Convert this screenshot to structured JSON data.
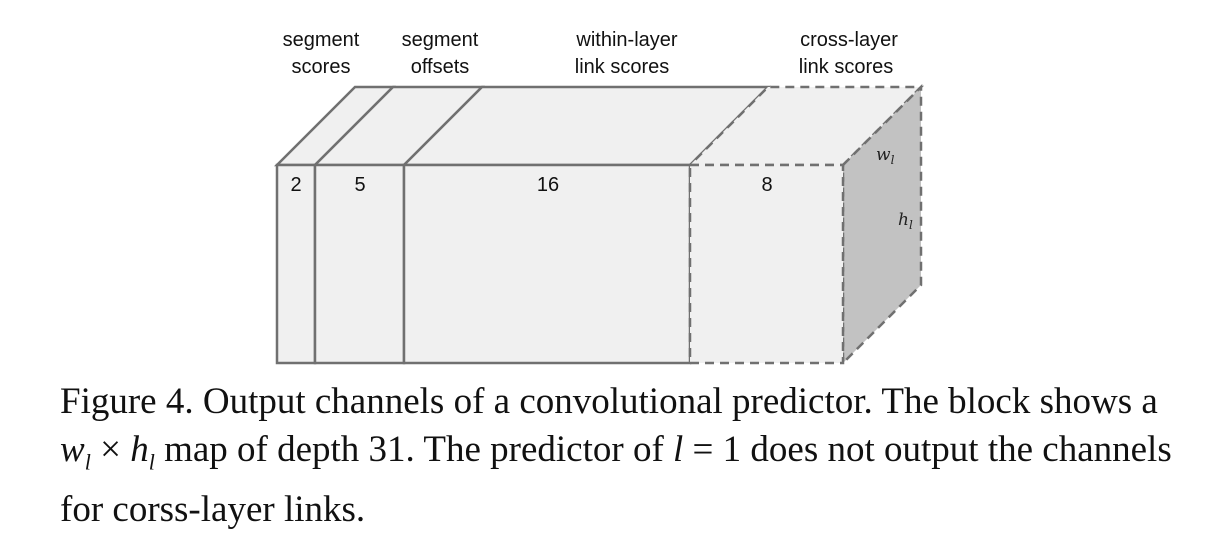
{
  "headers": [
    {
      "line1": "segment",
      "line2": "scores"
    },
    {
      "line1": "segment",
      "line2": "offsets"
    },
    {
      "line1": "within-layer",
      "line2": "link scores"
    },
    {
      "line1": "cross-layer",
      "line2": "link scores"
    }
  ],
  "channels": [
    "2",
    "5",
    "16",
    "8"
  ],
  "dims": {
    "width": "w",
    "height": "h",
    "subscript": "l"
  },
  "caption": {
    "part1": "Figure 4. Output channels of a convolutional predictor. The block shows a ",
    "w": "w",
    "sub1": "l",
    "times": " × ",
    "h": "h",
    "sub2": "l",
    "part2": " map of depth 31. The predictor of ",
    "l": "l",
    "eq": " = 1",
    "part3": " does not output the channels for corss-layer links."
  },
  "colors": {
    "face": "#f0f0f0",
    "side": "#c2c2c2",
    "stroke": "#707070"
  }
}
